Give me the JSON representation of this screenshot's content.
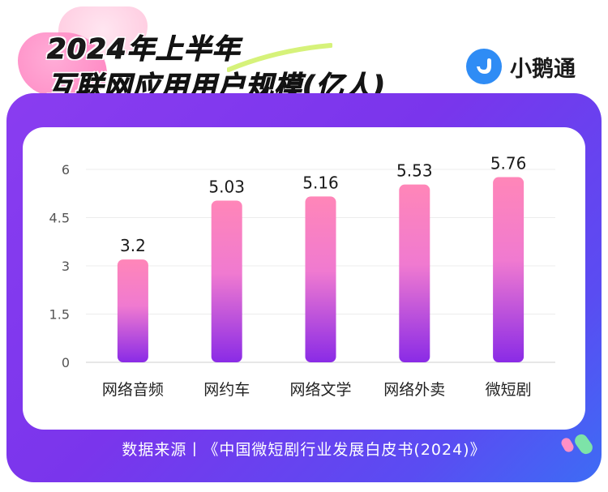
{
  "title": {
    "line1": "2024年上半年",
    "line2": "互联网应用用户规模(亿人)"
  },
  "brand": {
    "name": "小鹅通",
    "icon": "goose-logo-icon",
    "color": "#2f8cf5"
  },
  "footer": "数据来源丨《中国微短剧行业发展白皮书(2024)》",
  "colors": {
    "bar_top": "#ff86b8",
    "bar_bottom": "#8a2be6",
    "frame": "#7a35ec",
    "accent_blue": "#3d6cf5"
  },
  "chart_data": {
    "type": "bar",
    "title": "2024年上半年互联网应用用户规模(亿人)",
    "categories": [
      "网络音频",
      "网约车",
      "网络文学",
      "网络外卖",
      "微短剧"
    ],
    "values": [
      3.2,
      5.03,
      5.16,
      5.53,
      5.76
    ],
    "value_labels": [
      "3.2",
      "5.03",
      "5.16",
      "5.53",
      "5.76"
    ],
    "yticks": [
      "0",
      "1.5",
      "3",
      "4.5",
      "6"
    ],
    "ylim": [
      0,
      6
    ],
    "grid": true,
    "legend": "none"
  }
}
